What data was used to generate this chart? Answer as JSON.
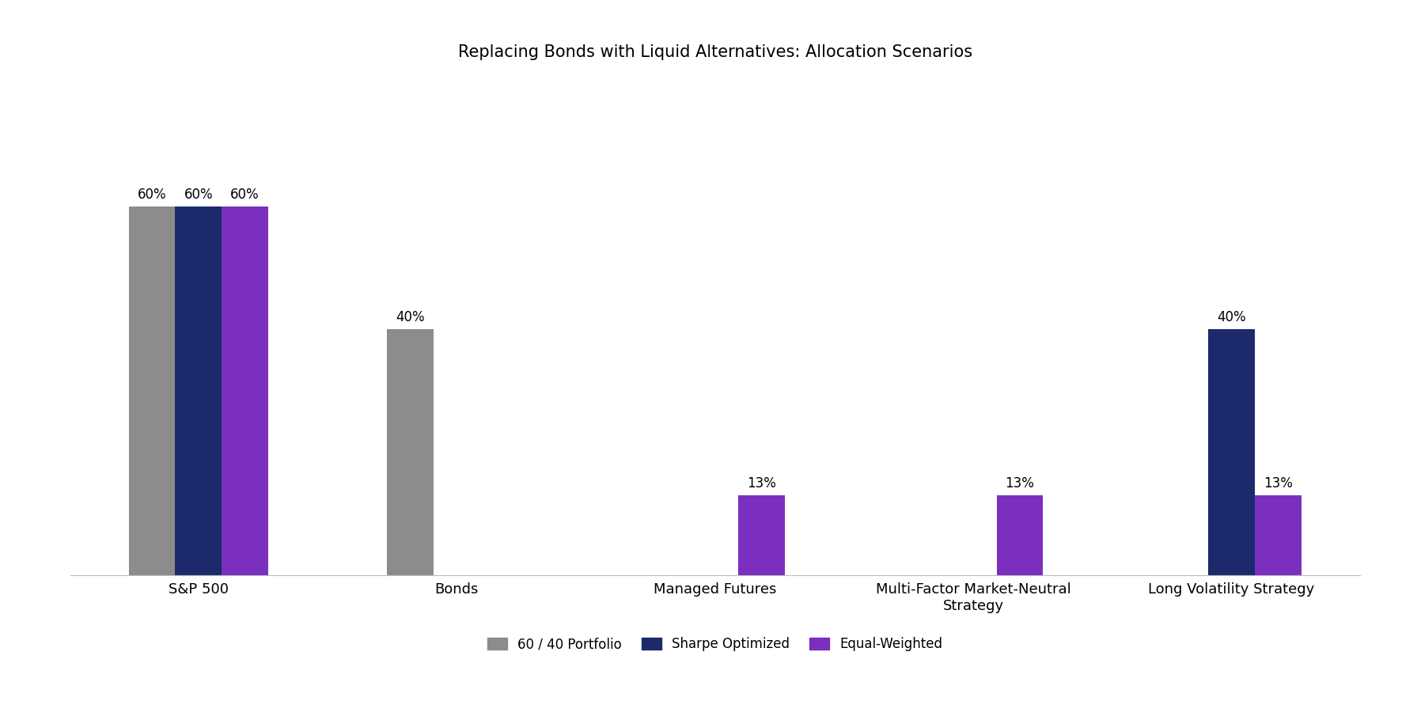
{
  "title": "Replacing Bonds with Liquid Alternatives: Allocation Scenarios",
  "categories": [
    "S&P 500",
    "Bonds",
    "Managed Futures",
    "Multi-Factor Market-Neutral\nStrategy",
    "Long Volatility Strategy"
  ],
  "series": [
    {
      "label": "60 / 40 Portfolio",
      "color": "#8c8c8c",
      "values": [
        60,
        40,
        0,
        0,
        0
      ]
    },
    {
      "label": "Sharpe Optimized",
      "color": "#1b2a6b",
      "values": [
        60,
        0,
        0,
        0,
        40
      ]
    },
    {
      "label": "Equal-Weighted",
      "color": "#7b2fbe",
      "values": [
        60,
        0,
        13,
        13,
        13
      ]
    }
  ],
  "ylim": [
    0,
    80
  ],
  "bar_width": 0.18,
  "title_fontsize": 15,
  "tick_fontsize": 13,
  "legend_fontsize": 12,
  "label_fontsize": 12,
  "background_color": "#ffffff"
}
